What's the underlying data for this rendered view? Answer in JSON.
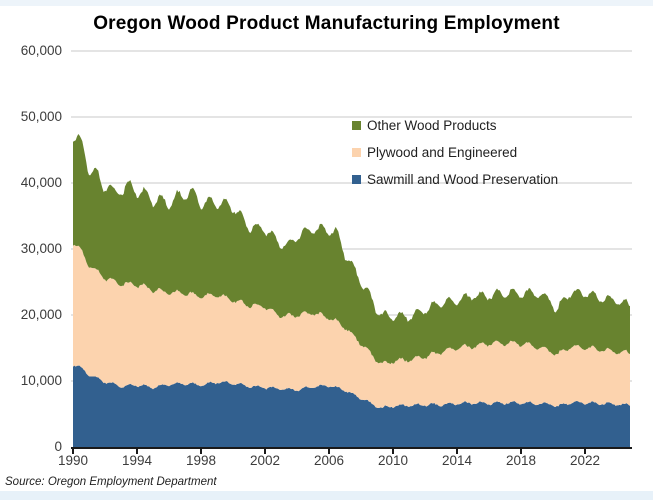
{
  "chart": {
    "title": "Oregon Wood Product Manufacturing Employment",
    "source": "Source: Oregon Employment Department"
  },
  "chart_data": {
    "type": "area",
    "stacked": true,
    "title": "Oregon Wood Product Manufacturing Employment",
    "xlabel": "",
    "ylabel": "",
    "x_range": [
      1990,
      2024.8
    ],
    "ylim": [
      0,
      60000
    ],
    "grid": "horizontal",
    "legend_position": "top-right-inside",
    "colors": {
      "gridline": "#c9c9c9",
      "axis": "#1a1a1a",
      "tick_text": "#3c3c3c"
    },
    "y_ticks": [
      {
        "value": 60000,
        "label": "60,000"
      },
      {
        "value": 50000,
        "label": "50,000"
      },
      {
        "value": 40000,
        "label": "40,000"
      },
      {
        "value": 30000,
        "label": "30,000"
      },
      {
        "value": 20000,
        "label": "20,000"
      },
      {
        "value": 10000,
        "label": "10,000"
      },
      {
        "value": 0,
        "label": "0"
      }
    ],
    "x_ticks": [
      {
        "year": 1990,
        "label": "1990"
      },
      {
        "year": 1994,
        "label": "1994"
      },
      {
        "year": 1998,
        "label": "1998"
      },
      {
        "year": 2002,
        "label": "2002"
      },
      {
        "year": 2006,
        "label": "2006"
      },
      {
        "year": 2010,
        "label": "2010"
      },
      {
        "year": 2014,
        "label": "2014"
      },
      {
        "year": 2018,
        "label": "2018"
      },
      {
        "year": 2022,
        "label": "2022"
      }
    ],
    "legend": [
      {
        "label": "Other Wood Products",
        "color": "#68832f"
      },
      {
        "label": "Plywood and Engineered",
        "color": "#fcd3ae"
      },
      {
        "label": "Sawmill and Wood Preservation",
        "color": "#32608f"
      }
    ],
    "series_note": "series listed bottom-to-top of the stack; anchors are [year, employment] control points of monthly data",
    "series": [
      {
        "name": "Sawmill and Wood Preservation",
        "color": "#32608f",
        "anchors": [
          [
            1990.0,
            12500
          ],
          [
            1990.3,
            12300
          ],
          [
            1990.6,
            11800
          ],
          [
            1991.0,
            10900
          ],
          [
            1991.5,
            10400
          ],
          [
            1992.0,
            9900
          ],
          [
            1993.0,
            9200
          ],
          [
            1994.0,
            9400
          ],
          [
            1995.0,
            9000
          ],
          [
            1996.0,
            9500
          ],
          [
            1997.0,
            9600
          ],
          [
            1998.0,
            9400
          ],
          [
            1999.0,
            9800
          ],
          [
            2000.0,
            9700
          ],
          [
            2001.0,
            9200
          ],
          [
            2002.0,
            9000
          ],
          [
            2003.0,
            8800
          ],
          [
            2004.0,
            8700
          ],
          [
            2005.0,
            9100
          ],
          [
            2006.0,
            9300
          ],
          [
            2007.0,
            8600
          ],
          [
            2008.0,
            7400
          ],
          [
            2008.7,
            6500
          ],
          [
            2009.3,
            5900
          ],
          [
            2010.0,
            6200
          ],
          [
            2011.0,
            6300
          ],
          [
            2012.0,
            6400
          ],
          [
            2013.0,
            6400
          ],
          [
            2014.0,
            6600
          ],
          [
            2015.0,
            6700
          ],
          [
            2016.0,
            6600
          ],
          [
            2017.0,
            6700
          ],
          [
            2018.0,
            6700
          ],
          [
            2019.0,
            6600
          ],
          [
            2019.9,
            6500
          ],
          [
            2020.3,
            6100
          ],
          [
            2020.8,
            6600
          ],
          [
            2021.5,
            6700
          ],
          [
            2022.0,
            6700
          ],
          [
            2023.0,
            6600
          ],
          [
            2024.0,
            6500
          ],
          [
            2024.85,
            6300
          ]
        ]
      },
      {
        "name": "Plywood and Engineered",
        "color": "#fcd3ae",
        "anchors": [
          [
            1990.0,
            18500
          ],
          [
            1990.5,
            17800
          ],
          [
            1991.0,
            16600
          ],
          [
            1992.0,
            15700
          ],
          [
            1993.0,
            15600
          ],
          [
            1994.0,
            15200
          ],
          [
            1995.0,
            14800
          ],
          [
            1996.0,
            13900
          ],
          [
            1997.0,
            13700
          ],
          [
            1998.0,
            13500
          ],
          [
            1999.0,
            13200
          ],
          [
            2000.0,
            12600
          ],
          [
            2001.0,
            12300
          ],
          [
            2002.0,
            12200
          ],
          [
            2003.0,
            11000
          ],
          [
            2004.0,
            11300
          ],
          [
            2005.0,
            11200
          ],
          [
            2006.0,
            10300
          ],
          [
            2007.0,
            9600
          ],
          [
            2008.0,
            8300
          ],
          [
            2009.0,
            7000
          ],
          [
            2009.6,
            6600
          ],
          [
            2010.0,
            6800
          ],
          [
            2011.0,
            6900
          ],
          [
            2012.0,
            7300
          ],
          [
            2013.0,
            8000
          ],
          [
            2014.0,
            8500
          ],
          [
            2015.0,
            8500
          ],
          [
            2016.0,
            9100
          ],
          [
            2017.0,
            9100
          ],
          [
            2018.0,
            9000
          ],
          [
            2019.0,
            8600
          ],
          [
            2020.3,
            7800
          ],
          [
            2021.0,
            8400
          ],
          [
            2022.0,
            8300
          ],
          [
            2023.0,
            8200
          ],
          [
            2024.0,
            7900
          ],
          [
            2024.85,
            7900
          ]
        ]
      },
      {
        "name": "Other Wood Products",
        "color": "#68832f",
        "anchors": [
          [
            1990.0,
            16400
          ],
          [
            1990.3,
            16700
          ],
          [
            1990.6,
            16000
          ],
          [
            1991.0,
            14500
          ],
          [
            1991.4,
            15000
          ],
          [
            1991.8,
            13500
          ],
          [
            1992.2,
            14500
          ],
          [
            1992.6,
            13000
          ],
          [
            1993.0,
            14400
          ],
          [
            1993.5,
            14800
          ],
          [
            1994.0,
            14300
          ],
          [
            1995.0,
            13700
          ],
          [
            1996.0,
            13600
          ],
          [
            1997.0,
            15100
          ],
          [
            1997.5,
            15300
          ],
          [
            1998.0,
            14200
          ],
          [
            1999.0,
            14000
          ],
          [
            2000.0,
            14200
          ],
          [
            2001.0,
            11800
          ],
          [
            2002.0,
            11800
          ],
          [
            2003.0,
            11000
          ],
          [
            2003.5,
            10500
          ],
          [
            2004.0,
            12000
          ],
          [
            2005.0,
            12700
          ],
          [
            2006.0,
            13300
          ],
          [
            2006.5,
            13400
          ],
          [
            2007.0,
            11200
          ],
          [
            2008.0,
            9500
          ],
          [
            2009.0,
            7700
          ],
          [
            2009.7,
            7000
          ],
          [
            2010.0,
            7000
          ],
          [
            2011.0,
            6400
          ],
          [
            2012.0,
            7100
          ],
          [
            2013.0,
            7400
          ],
          [
            2014.0,
            7200
          ],
          [
            2015.0,
            7700
          ],
          [
            2016.0,
            7300
          ],
          [
            2017.0,
            7600
          ],
          [
            2018.0,
            7600
          ],
          [
            2019.0,
            8100
          ],
          [
            2019.9,
            7700
          ],
          [
            2020.2,
            6500
          ],
          [
            2020.7,
            7800
          ],
          [
            2021.0,
            8100
          ],
          [
            2022.0,
            8300
          ],
          [
            2023.0,
            7800
          ],
          [
            2024.0,
            7800
          ],
          [
            2024.85,
            7200
          ]
        ]
      }
    ]
  }
}
